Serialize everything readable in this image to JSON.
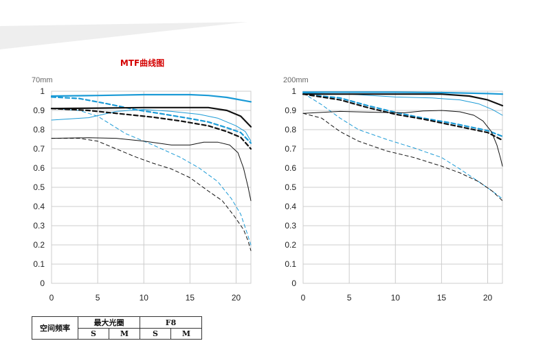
{
  "header": {
    "cutoff_text": "",
    "section_title": "MTF曲线图"
  },
  "colors": {
    "blue": "#1a9ad6",
    "black": "#111111",
    "grid": "#cccccc",
    "band": "#eeeeee"
  },
  "chart_data": [
    {
      "type": "line",
      "title": "70mm",
      "xlim": [
        0,
        21.6
      ],
      "ylim": [
        0,
        1
      ],
      "x_ticks": [
        "0",
        "5",
        "10",
        "15",
        "20"
      ],
      "y_ticks": [
        "0",
        "0.1",
        "0.2",
        "0.3",
        "0.4",
        "0.5",
        "0.6",
        "0.7",
        "0.8",
        "0.9",
        "1"
      ],
      "grid": true,
      "series": [
        {
          "color": "blue",
          "width": 2.2,
          "dash": false,
          "points": [
            [
              0,
              0.975
            ],
            [
              5,
              0.978
            ],
            [
              10,
              0.982
            ],
            [
              15,
              0.982
            ],
            [
              17,
              0.978
            ],
            [
              19,
              0.968
            ],
            [
              21.6,
              0.945
            ]
          ]
        },
        {
          "color": "blue",
          "width": 2.2,
          "dash": true,
          "points": [
            [
              0,
              0.97
            ],
            [
              3,
              0.962
            ],
            [
              6,
              0.935
            ],
            [
              9,
              0.905
            ],
            [
              12,
              0.882
            ],
            [
              15,
              0.858
            ],
            [
              17,
              0.84
            ],
            [
              19,
              0.81
            ],
            [
              20.5,
              0.785
            ],
            [
              21.6,
              0.73
            ]
          ]
        },
        {
          "color": "blue",
          "width": 1.0,
          "dash": false,
          "points": [
            [
              0,
              0.85
            ],
            [
              4,
              0.862
            ],
            [
              7,
              0.895
            ],
            [
              10,
              0.905
            ],
            [
              13,
              0.895
            ],
            [
              16,
              0.88
            ],
            [
              18,
              0.86
            ],
            [
              20,
              0.82
            ],
            [
              21,
              0.79
            ],
            [
              21.6,
              0.74
            ]
          ]
        },
        {
          "color": "blue",
          "width": 1.0,
          "dash": true,
          "points": [
            [
              0,
              0.91
            ],
            [
              3,
              0.9
            ],
            [
              5,
              0.87
            ],
            [
              8,
              0.78
            ],
            [
              11,
              0.72
            ],
            [
              14,
              0.655
            ],
            [
              16,
              0.6
            ],
            [
              18,
              0.53
            ],
            [
              19.5,
              0.44
            ],
            [
              20.5,
              0.36
            ],
            [
              21.2,
              0.26
            ],
            [
              21.6,
              0.2
            ]
          ]
        },
        {
          "color": "black",
          "width": 2.2,
          "dash": false,
          "points": [
            [
              0,
              0.91
            ],
            [
              5,
              0.912
            ],
            [
              10,
              0.915
            ],
            [
              14,
              0.915
            ],
            [
              17,
              0.915
            ],
            [
              19,
              0.9
            ],
            [
              20.5,
              0.87
            ],
            [
              21.6,
              0.815
            ]
          ]
        },
        {
          "color": "black",
          "width": 2.2,
          "dash": true,
          "points": [
            [
              0,
              0.91
            ],
            [
              4,
              0.9
            ],
            [
              8,
              0.88
            ],
            [
              11,
              0.865
            ],
            [
              14,
              0.845
            ],
            [
              17,
              0.82
            ],
            [
              19,
              0.79
            ],
            [
              20.5,
              0.76
            ],
            [
              21.6,
              0.7
            ]
          ]
        },
        {
          "color": "black",
          "width": 1.0,
          "dash": false,
          "points": [
            [
              0,
              0.755
            ],
            [
              4,
              0.758
            ],
            [
              7,
              0.755
            ],
            [
              10,
              0.74
            ],
            [
              13,
              0.72
            ],
            [
              15,
              0.72
            ],
            [
              16.5,
              0.735
            ],
            [
              18,
              0.735
            ],
            [
              19.3,
              0.72
            ],
            [
              20.2,
              0.68
            ],
            [
              20.8,
              0.6
            ],
            [
              21.3,
              0.5
            ],
            [
              21.6,
              0.43
            ]
          ]
        },
        {
          "color": "black",
          "width": 1.0,
          "dash": true,
          "points": [
            [
              0,
              0.755
            ],
            [
              3,
              0.755
            ],
            [
              5,
              0.74
            ],
            [
              7,
              0.7
            ],
            [
              9,
              0.66
            ],
            [
              11,
              0.625
            ],
            [
              13,
              0.595
            ],
            [
              15,
              0.55
            ],
            [
              17,
              0.48
            ],
            [
              18.5,
              0.43
            ],
            [
              19.8,
              0.35
            ],
            [
              20.8,
              0.28
            ],
            [
              21.3,
              0.22
            ],
            [
              21.6,
              0.17
            ]
          ]
        }
      ]
    },
    {
      "type": "line",
      "title": "200mm",
      "xlim": [
        0,
        21.6
      ],
      "ylim": [
        0,
        1
      ],
      "x_ticks": [
        "0",
        "5",
        "10",
        "15",
        "20"
      ],
      "y_ticks": [
        "0",
        "0.1",
        "0.2",
        "0.3",
        "0.4",
        "0.5",
        "0.6",
        "0.7",
        "0.8",
        "0.9",
        "1"
      ],
      "grid": true,
      "series": [
        {
          "color": "blue",
          "width": 2.2,
          "dash": false,
          "points": [
            [
              0,
              0.995
            ],
            [
              5,
              0.995
            ],
            [
              10,
              0.995
            ],
            [
              15,
              0.993
            ],
            [
              18,
              0.99
            ],
            [
              20,
              0.988
            ],
            [
              21.6,
              0.985
            ]
          ]
        },
        {
          "color": "blue",
          "width": 2.2,
          "dash": true,
          "points": [
            [
              0,
              0.985
            ],
            [
              4,
              0.965
            ],
            [
              7,
              0.925
            ],
            [
              10,
              0.89
            ],
            [
              13,
              0.86
            ],
            [
              16,
              0.835
            ],
            [
              18,
              0.815
            ],
            [
              20,
              0.795
            ],
            [
              21.6,
              0.765
            ]
          ]
        },
        {
          "color": "blue",
          "width": 1.0,
          "dash": false,
          "points": [
            [
              0,
              0.99
            ],
            [
              5,
              0.985
            ],
            [
              10,
              0.97
            ],
            [
              14,
              0.965
            ],
            [
              17,
              0.955
            ],
            [
              19,
              0.935
            ],
            [
              20.5,
              0.905
            ],
            [
              21.6,
              0.875
            ]
          ]
        },
        {
          "color": "blue",
          "width": 1.0,
          "dash": true,
          "points": [
            [
              0,
              0.99
            ],
            [
              2,
              0.93
            ],
            [
              4,
              0.86
            ],
            [
              6,
              0.8
            ],
            [
              9,
              0.75
            ],
            [
              12,
              0.705
            ],
            [
              15,
              0.655
            ],
            [
              17,
              0.595
            ],
            [
              19,
              0.53
            ],
            [
              20.5,
              0.48
            ],
            [
              21.6,
              0.44
            ]
          ]
        },
        {
          "color": "black",
          "width": 2.2,
          "dash": false,
          "points": [
            [
              0,
              0.985
            ],
            [
              5,
              0.985
            ],
            [
              10,
              0.985
            ],
            [
              15,
              0.985
            ],
            [
              18,
              0.975
            ],
            [
              20,
              0.955
            ],
            [
              21.6,
              0.925
            ]
          ]
        },
        {
          "color": "black",
          "width": 2.2,
          "dash": true,
          "points": [
            [
              0,
              0.985
            ],
            [
              4,
              0.955
            ],
            [
              7,
              0.915
            ],
            [
              10,
              0.88
            ],
            [
              13,
              0.855
            ],
            [
              16,
              0.825
            ],
            [
              18,
              0.805
            ],
            [
              20,
              0.785
            ],
            [
              21.6,
              0.745
            ]
          ]
        },
        {
          "color": "black",
          "width": 1.0,
          "dash": false,
          "points": [
            [
              0,
              0.885
            ],
            [
              4,
              0.895
            ],
            [
              8,
              0.89
            ],
            [
              11,
              0.888
            ],
            [
              13,
              0.897
            ],
            [
              15,
              0.9
            ],
            [
              17,
              0.893
            ],
            [
              18.5,
              0.875
            ],
            [
              19.5,
              0.845
            ],
            [
              20.4,
              0.79
            ],
            [
              21,
              0.72
            ],
            [
              21.4,
              0.65
            ],
            [
              21.6,
              0.61
            ]
          ]
        },
        {
          "color": "black",
          "width": 1.0,
          "dash": true,
          "points": [
            [
              0,
              0.885
            ],
            [
              2,
              0.86
            ],
            [
              4,
              0.79
            ],
            [
              6,
              0.74
            ],
            [
              9,
              0.69
            ],
            [
              12,
              0.655
            ],
            [
              15,
              0.61
            ],
            [
              17,
              0.575
            ],
            [
              19,
              0.53
            ],
            [
              20.5,
              0.48
            ],
            [
              21.6,
              0.43
            ]
          ]
        }
      ]
    }
  ],
  "spec_table": {
    "row_header": "空间频率",
    "group1": "最大光圈",
    "group2": "F8",
    "s": "S",
    "m": "M"
  }
}
